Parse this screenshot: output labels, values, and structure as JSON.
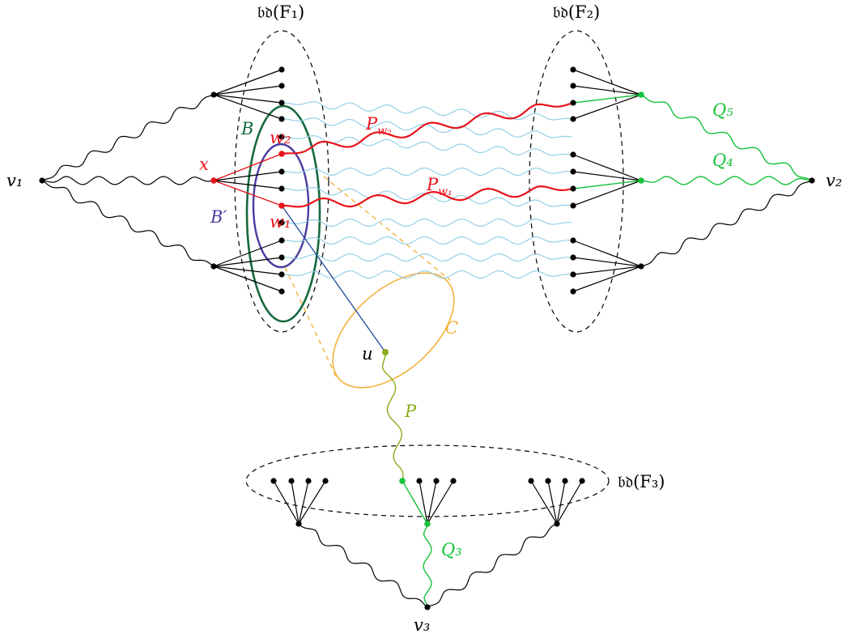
{
  "labels": {
    "bd_f1": "𝔟𝔡(F₁)",
    "bd_f2": "𝔟𝔡(F₂)",
    "bd_f3": "𝔟𝔡(F₃)",
    "v1": "v₁",
    "v2": "v₂",
    "v3": "v₃",
    "x": "x",
    "w1": "w₁",
    "w2": "w₂",
    "B": "B",
    "B_prime": "B′",
    "C": "C",
    "u": "u",
    "P": "P",
    "P_w1": "P",
    "P_w1_sub": "w₁",
    "P_w2": "P",
    "P_w2_sub": "w₂",
    "Q3": "Q₃",
    "Q4": "Q₄",
    "Q5": "Q₅"
  },
  "colors": {
    "black": "#000000",
    "red": "#e8141b",
    "light_blue": "#8fcbe6",
    "green": "#16c23a",
    "olive": "#8aac1b",
    "orange": "#f3b23d",
    "dark_green": "#15693f",
    "purple": "#4a3b9e",
    "navy": "#1f4a9c"
  }
}
